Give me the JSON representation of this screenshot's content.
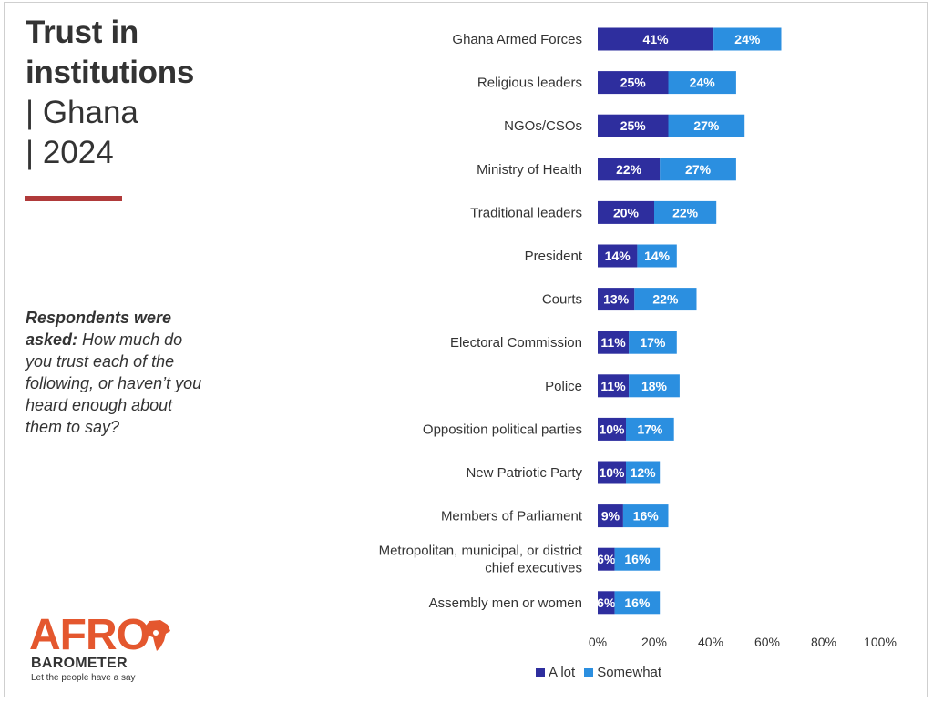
{
  "heading": {
    "title_line1": "Trust in",
    "title_line2": "institutions",
    "subtitle_line1": "| Ghana",
    "subtitle_line2": "| 2024",
    "accent_color": "#b03a3a"
  },
  "question": {
    "lead": "Respondents were asked:",
    "text": " How much do you trust each of the following, or haven’t you heard enough about them to say?"
  },
  "logo": {
    "brand": "AFRO",
    "brand_sub": "BAROMETER",
    "tagline": "Let the people have a say",
    "brand_color": "#e4572e"
  },
  "legend_labels": [
    "A lot",
    "Somewhat"
  ],
  "chart_data": {
    "type": "bar",
    "orientation": "horizontal",
    "stacked": true,
    "categories": [
      "Ghana Armed Forces",
      "Religious leaders",
      "NGOs/CSOs",
      "Ministry of Health",
      "Traditional leaders",
      "President",
      "Courts",
      "Electoral Commission",
      "Police",
      "Opposition political parties",
      "New Patriotic Party",
      "Members of Parliament",
      "Metropolitan, municipal, or district chief executives",
      "Assembly men or women"
    ],
    "category_lines": [
      [
        "Ghana Armed Forces"
      ],
      [
        "Religious leaders"
      ],
      [
        "NGOs/CSOs"
      ],
      [
        "Ministry of Health"
      ],
      [
        "Traditional leaders"
      ],
      [
        "President"
      ],
      [
        "Courts"
      ],
      [
        "Electoral Commission"
      ],
      [
        "Police"
      ],
      [
        "Opposition political parties"
      ],
      [
        "New Patriotic Party"
      ],
      [
        "Members of Parliament"
      ],
      [
        "Metropolitan, municipal, or district",
        "chief executives"
      ],
      [
        "Assembly men or women"
      ]
    ],
    "series": [
      {
        "name": "A lot",
        "color": "#2e2e9e",
        "values": [
          41,
          25,
          25,
          22,
          20,
          14,
          13,
          11,
          11,
          10,
          10,
          9,
          6,
          6
        ],
        "labels": [
          "41%",
          "25%",
          "25%",
          "22%",
          "20%",
          "14%",
          "13%",
          "11%",
          "11%",
          "10%",
          "10%",
          "9%",
          "6%",
          "6%"
        ]
      },
      {
        "name": "Somewhat",
        "color": "#2b8fe0",
        "values": [
          24,
          24,
          27,
          27,
          22,
          14,
          22,
          17,
          18,
          17,
          12,
          16,
          16,
          16
        ],
        "labels": [
          "24%",
          "24%",
          "27%",
          "27%",
          "22%",
          "14%",
          "22%",
          "17%",
          "18%",
          "17%",
          "12%",
          "16%",
          "16%",
          "16%"
        ]
      }
    ],
    "xlim": [
      0,
      100
    ],
    "xticks": [
      0,
      20,
      40,
      60,
      80,
      100
    ],
    "xtick_labels": [
      "0%",
      "20%",
      "40%",
      "60%",
      "80%",
      "100%"
    ],
    "grid": false,
    "legend_position": "bottom"
  }
}
